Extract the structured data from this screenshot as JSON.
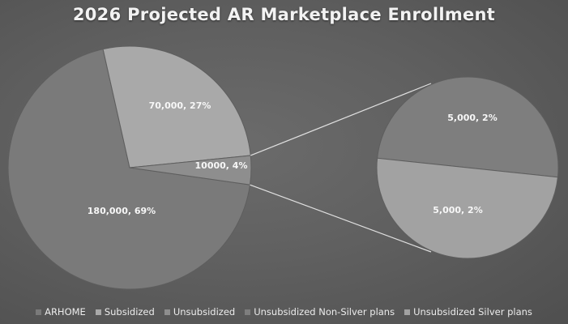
{
  "chart_data": {
    "type": "pie",
    "title": "2026 Projected AR Marketplace Enrollment",
    "main_pie": [
      {
        "name": "ARHOME",
        "value": 180000,
        "label": "180,000, 69%",
        "color": "#7a7a7a"
      },
      {
        "name": "Subsidized",
        "value": 70000,
        "label": "70,000, 27%",
        "color": "#a9a9a9"
      },
      {
        "name": "Unsubsidized",
        "value": 10000,
        "label": "10000, 4%",
        "color": "#8e8e8e"
      }
    ],
    "secondary_pie": [
      {
        "name": "Unsubsidized Non-Silver plans",
        "value": 5000,
        "label": "5,000, 2%",
        "color": "#7e7e7e"
      },
      {
        "name": "Unsubsidized Silver plans",
        "value": 5000,
        "label": "5,000, 2%",
        "color": "#a2a2a2"
      }
    ],
    "legend_position": "bottom",
    "legend": [
      {
        "name": "ARHOME",
        "color": "#7a7a7a"
      },
      {
        "name": "Subsidized",
        "color": "#a9a9a9"
      },
      {
        "name": "Unsubsidized",
        "color": "#8e8e8e"
      },
      {
        "name": "Unsubsidized Non-Silver plans",
        "color": "#7e7e7e"
      },
      {
        "name": "Unsubsidized Silver plans",
        "color": "#a2a2a2"
      }
    ],
    "connector_color": "#e0e0e0"
  }
}
